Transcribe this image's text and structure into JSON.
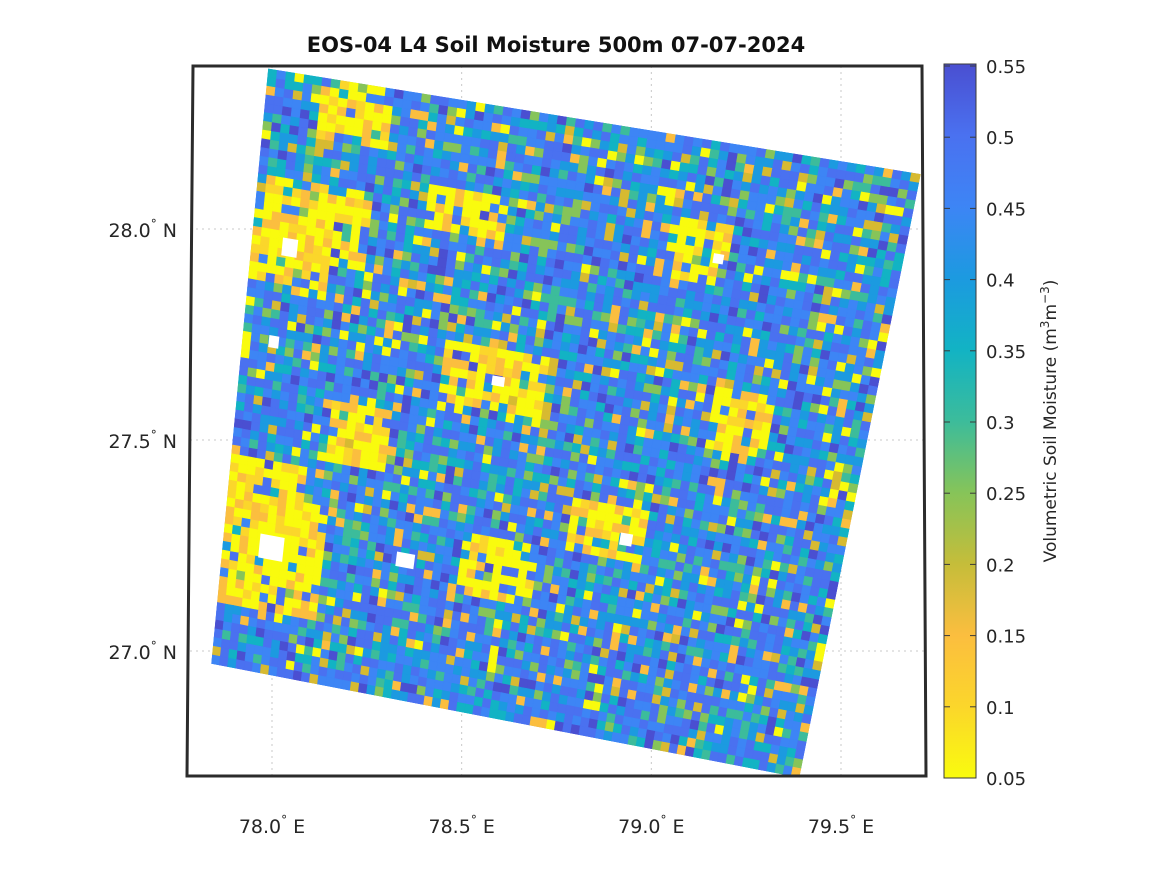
{
  "map": {
    "title": "EOS-04 L4 Soil Moisture 500m 07-07-2024",
    "lon_ticks": [
      {
        "value": 78.0,
        "label": "78.0",
        "hemi": "E"
      },
      {
        "value": 78.5,
        "label": "78.5",
        "hemi": "E"
      },
      {
        "value": 79.0,
        "label": "79.0",
        "hemi": "E"
      },
      {
        "value": 79.5,
        "label": "79.5",
        "hemi": "E"
      }
    ],
    "lat_ticks": [
      {
        "value": 28.0,
        "label": "28.0",
        "hemi": "N"
      },
      {
        "value": 27.5,
        "label": "27.5",
        "hemi": "N"
      },
      {
        "value": 27.0,
        "label": "27.0",
        "hemi": "N"
      }
    ],
    "lon_range": [
      77.75,
      79.75
    ],
    "lat_range": [
      26.7,
      28.4
    ],
    "grid": true,
    "swath_corners": {
      "top_left": {
        "lon": 77.99,
        "lat": 28.38
      },
      "top_right": {
        "lon": 79.71,
        "lat": 28.13
      },
      "bottom_right": {
        "lon": 79.39,
        "lat": 26.7
      },
      "bottom_left": {
        "lon": 77.84,
        "lat": 26.97
      }
    }
  },
  "colorbar": {
    "label_main": "Volumetric Soil Moisture (m",
    "label_sup1": "3",
    "label_mid": "m",
    "label_sup2": "−3",
    "label_end": ")",
    "min": 0.05,
    "max": 0.55,
    "ticks": [
      "0.05",
      "0.1",
      "0.15",
      "0.2",
      "0.25",
      "0.3",
      "0.35",
      "0.4",
      "0.45",
      "0.5",
      "0.55"
    ],
    "colormap": "parula",
    "colors": [
      "#f9fb0e",
      "#fbbe3f",
      "#d7ba31",
      "#86c459",
      "#3cbc9b",
      "#12b3c4",
      "#1c9ae0",
      "#3d85f5",
      "#4a71f0",
      "#4a4fd1"
    ]
  },
  "colors": {
    "axes_box": "#2b2b2b",
    "grid": "#c8c8c8",
    "background": "#ffffff"
  }
}
